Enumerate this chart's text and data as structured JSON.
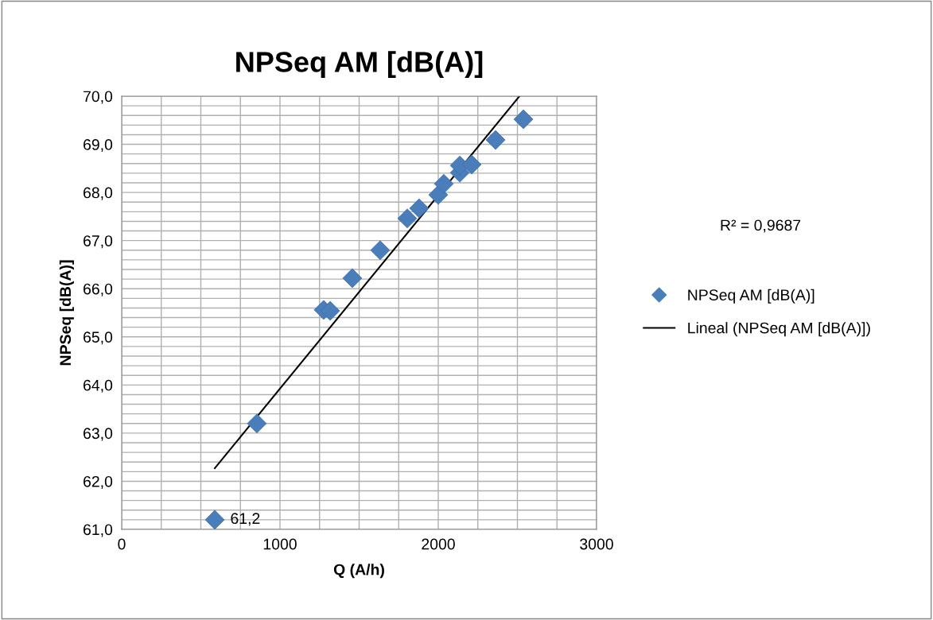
{
  "chart_data": {
    "type": "scatter",
    "title": "NPSeq AM [dB(A)]",
    "xlabel": "Q (A/h)",
    "ylabel": "NPSeq [dB(A)]",
    "annotations": [
      "R² = 0,9687"
    ],
    "marker": "diamond",
    "grid": true,
    "legend": "right",
    "xlim": [
      0,
      3000
    ],
    "xticks": [
      0,
      {
        "value": 250,
        "label": null
      },
      {
        "value": 500,
        "label": null
      },
      {
        "value": 750,
        "label": null
      },
      1000,
      {
        "value": 1250,
        "label": null
      },
      {
        "value": 1500,
        "label": null
      },
      {
        "value": 1750,
        "label": null
      },
      2000,
      {
        "value": 2250,
        "label": null
      },
      {
        "value": 2500,
        "label": null
      },
      {
        "value": 2750,
        "label": null
      },
      3000
    ],
    "ylim": [
      61,
      70
    ],
    "yticks": [
      {
        "value": 61,
        "label": "61,0"
      },
      {
        "value": 61.2,
        "label": null
      },
      {
        "value": 61.4,
        "label": null
      },
      {
        "value": 61.6,
        "label": null
      },
      {
        "value": 61.8,
        "label": null
      },
      {
        "value": 62,
        "label": "62,0"
      },
      {
        "value": 62.2,
        "label": null
      },
      {
        "value": 62.4,
        "label": null
      },
      {
        "value": 62.6,
        "label": null
      },
      {
        "value": 62.8,
        "label": null
      },
      {
        "value": 63,
        "label": "63,0"
      },
      {
        "value": 63.2,
        "label": null
      },
      {
        "value": 63.4,
        "label": null
      },
      {
        "value": 63.6,
        "label": null
      },
      {
        "value": 63.8,
        "label": null
      },
      {
        "value": 64,
        "label": "64,0"
      },
      {
        "value": 64.2,
        "label": null
      },
      {
        "value": 64.4,
        "label": null
      },
      {
        "value": 64.6,
        "label": null
      },
      {
        "value": 64.8,
        "label": null
      },
      {
        "value": 65,
        "label": "65,0"
      },
      {
        "value": 65.2,
        "label": null
      },
      {
        "value": 65.4,
        "label": null
      },
      {
        "value": 65.6,
        "label": null
      },
      {
        "value": 65.8,
        "label": null
      },
      {
        "value": 66,
        "label": "66,0"
      },
      {
        "value": 66.2,
        "label": null
      },
      {
        "value": 66.4,
        "label": null
      },
      {
        "value": 66.6,
        "label": null
      },
      {
        "value": 66.8,
        "label": null
      },
      {
        "value": 67,
        "label": "67,0"
      },
      {
        "value": 67.2,
        "label": null
      },
      {
        "value": 67.4,
        "label": null
      },
      {
        "value": 67.6,
        "label": null
      },
      {
        "value": 67.8,
        "label": null
      },
      {
        "value": 68,
        "label": "68,0"
      },
      {
        "value": 68.2,
        "label": null
      },
      {
        "value": 68.4,
        "label": null
      },
      {
        "value": 68.6,
        "label": null
      },
      {
        "value": 68.8,
        "label": null
      },
      {
        "value": 69,
        "label": "69,0"
      },
      {
        "value": 69.2,
        "label": null
      },
      {
        "value": 69.4,
        "label": null
      },
      {
        "value": 69.6,
        "label": null
      },
      {
        "value": 69.8,
        "label": null
      },
      {
        "value": 70,
        "label": "70,0"
      }
    ],
    "series": [
      {
        "name": "NPSeq AM [dB(A)]",
        "color": "#4a7ebb",
        "x": [
          588,
          854,
          1276,
          1317,
          1457,
          1633,
          1804,
          1879,
          2000,
          2035,
          2136,
          2136,
          2211,
          2362,
          2538
        ],
        "values": [
          61.2,
          63.2,
          65.56,
          65.54,
          66.22,
          66.8,
          67.46,
          67.67,
          67.95,
          68.18,
          68.41,
          68.56,
          68.58,
          69.09,
          69.52
        ],
        "value_labels": [
          "61,2",
          null,
          null,
          null,
          null,
          null,
          null,
          null,
          null,
          null,
          null,
          null,
          null,
          null,
          null
        ]
      },
      {
        "name": "Lineal (NPSeq AM [dB(A)])",
        "type": "line",
        "color": "#000000",
        "marker": "none",
        "x": [
          588,
          2513
        ],
        "values": [
          62.27,
          70.0
        ]
      }
    ]
  }
}
